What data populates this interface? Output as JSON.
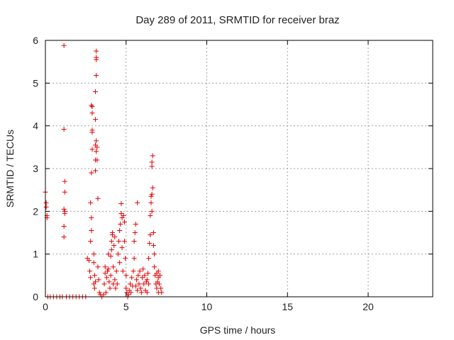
{
  "chart_data": {
    "type": "scatter",
    "title": "Day 289 of 2011, SRMTID for receiver braz",
    "xlabel": "GPS time / hours",
    "ylabel": "SRMTID / TECUs",
    "xlim": [
      0,
      24
    ],
    "ylim": [
      0,
      6
    ],
    "xticks": [
      0,
      5,
      10,
      15,
      20
    ],
    "yticks": [
      0,
      1,
      2,
      3,
      4,
      5,
      6
    ],
    "grid": true,
    "marker": "plus",
    "color": "#e00000",
    "points": [
      [
        0.0,
        2.45
      ],
      [
        0.05,
        2.2
      ],
      [
        0.05,
        2.1
      ],
      [
        0.1,
        1.9
      ],
      [
        0.1,
        1.85
      ],
      [
        0.15,
        0.0
      ],
      [
        0.3,
        0.0
      ],
      [
        0.5,
        0.0
      ],
      [
        0.7,
        0.0
      ],
      [
        0.9,
        0.0
      ],
      [
        1.05,
        0.0
      ],
      [
        1.15,
        5.88
      ],
      [
        1.15,
        3.92
      ],
      [
        1.2,
        2.7
      ],
      [
        1.2,
        2.45
      ],
      [
        1.15,
        2.05
      ],
      [
        1.2,
        2.0
      ],
      [
        1.2,
        1.95
      ],
      [
        1.15,
        1.65
      ],
      [
        1.15,
        1.4
      ],
      [
        1.3,
        0.0
      ],
      [
        1.5,
        0.0
      ],
      [
        1.7,
        0.0
      ],
      [
        1.9,
        0.0
      ],
      [
        2.1,
        0.0
      ],
      [
        2.3,
        0.0
      ],
      [
        2.5,
        0.0
      ],
      [
        2.6,
        0.9
      ],
      [
        2.7,
        0.85
      ],
      [
        2.75,
        0.6
      ],
      [
        2.8,
        0.45
      ],
      [
        2.8,
        1.3
      ],
      [
        2.85,
        1.55
      ],
      [
        2.8,
        2.2
      ],
      [
        2.85,
        1.85
      ],
      [
        2.85,
        2.9
      ],
      [
        2.9,
        3.45
      ],
      [
        2.9,
        3.85
      ],
      [
        2.9,
        3.9
      ],
      [
        2.9,
        4.3
      ],
      [
        2.85,
        4.48
      ],
      [
        2.9,
        4.45
      ],
      [
        3.0,
        1.0
      ],
      [
        3.0,
        0.8
      ],
      [
        3.05,
        0.5
      ],
      [
        3.0,
        0.3
      ],
      [
        3.05,
        0.2
      ],
      [
        3.1,
        0.35
      ],
      [
        3.1,
        2.95
      ],
      [
        3.1,
        3.2
      ],
      [
        3.15,
        3.4
      ],
      [
        3.1,
        3.55
      ],
      [
        3.15,
        3.65
      ],
      [
        3.1,
        4.15
      ],
      [
        3.1,
        4.8
      ],
      [
        3.15,
        5.18
      ],
      [
        3.15,
        5.55
      ],
      [
        3.15,
        5.6
      ],
      [
        3.15,
        5.75
      ],
      [
        3.2,
        3.2
      ],
      [
        3.2,
        3.5
      ],
      [
        3.25,
        2.3
      ],
      [
        3.25,
        0.7
      ],
      [
        3.3,
        0.4
      ],
      [
        3.35,
        0.1
      ],
      [
        3.4,
        0.05
      ],
      [
        3.5,
        0.0
      ],
      [
        3.6,
        0.05
      ],
      [
        3.65,
        0.3
      ],
      [
        3.7,
        0.55
      ],
      [
        3.7,
        0.7
      ],
      [
        3.75,
        0.1
      ],
      [
        3.8,
        0.45
      ],
      [
        3.85,
        0.6
      ],
      [
        3.9,
        0.65
      ],
      [
        3.9,
        1.0
      ],
      [
        3.95,
        0.35
      ],
      [
        4.0,
        0.2
      ],
      [
        4.05,
        0.5
      ],
      [
        4.05,
        0.95
      ],
      [
        4.1,
        1.1
      ],
      [
        4.1,
        1.3
      ],
      [
        4.15,
        1.45
      ],
      [
        4.15,
        1.5
      ],
      [
        4.2,
        0.7
      ],
      [
        4.2,
        0.3
      ],
      [
        4.25,
        1.2
      ],
      [
        4.3,
        1.4
      ],
      [
        4.3,
        0.4
      ],
      [
        4.35,
        0.2
      ],
      [
        4.4,
        0.6
      ],
      [
        4.45,
        0.3
      ],
      [
        4.5,
        1.0
      ],
      [
        4.55,
        1.3
      ],
      [
        4.6,
        1.55
      ],
      [
        4.6,
        0.8
      ],
      [
        4.65,
        1.7
      ],
      [
        4.7,
        1.95
      ],
      [
        4.7,
        2.18
      ],
      [
        4.75,
        1.85
      ],
      [
        4.75,
        1.15
      ],
      [
        4.8,
        0.6
      ],
      [
        4.85,
        1.9
      ],
      [
        4.9,
        1.75
      ],
      [
        4.9,
        1.3
      ],
      [
        4.95,
        0.9
      ],
      [
        5.0,
        0.5
      ],
      [
        5.0,
        0.2
      ],
      [
        5.05,
        0.1
      ],
      [
        5.1,
        0.0
      ],
      [
        5.15,
        0.05
      ],
      [
        5.2,
        0.15
      ],
      [
        5.25,
        0.3
      ],
      [
        5.3,
        0.1
      ],
      [
        5.35,
        0.45
      ],
      [
        5.4,
        0.25
      ],
      [
        5.45,
        0.6
      ],
      [
        5.5,
        0.9
      ],
      [
        5.5,
        1.3
      ],
      [
        5.55,
        1.5
      ],
      [
        5.6,
        1.7
      ],
      [
        5.65,
        0.4
      ],
      [
        5.7,
        2.2
      ],
      [
        5.7,
        0.15
      ],
      [
        5.75,
        0.5
      ],
      [
        5.8,
        0.3
      ],
      [
        5.85,
        0.6
      ],
      [
        5.9,
        0.2
      ],
      [
        5.95,
        0.1
      ],
      [
        6.0,
        0.45
      ],
      [
        6.05,
        0.65
      ],
      [
        6.1,
        0.3
      ],
      [
        6.15,
        0.5
      ],
      [
        6.2,
        0.15
      ],
      [
        6.25,
        0.35
      ],
      [
        6.3,
        0.1
      ],
      [
        6.35,
        0.55
      ],
      [
        6.4,
        0.9
      ],
      [
        6.45,
        1.25
      ],
      [
        6.5,
        1.9
      ],
      [
        6.5,
        1.45
      ],
      [
        6.55,
        2.2
      ],
      [
        6.55,
        2.35
      ],
      [
        6.6,
        2.4
      ],
      [
        6.6,
        3.05
      ],
      [
        6.6,
        3.15
      ],
      [
        6.65,
        3.3
      ],
      [
        6.65,
        2.55
      ],
      [
        6.6,
        2.0
      ],
      [
        6.7,
        1.5
      ],
      [
        6.7,
        1.2
      ],
      [
        6.75,
        1.0
      ],
      [
        6.75,
        0.7
      ],
      [
        6.8,
        0.5
      ],
      [
        6.85,
        0.3
      ],
      [
        6.9,
        0.2
      ],
      [
        6.95,
        0.35
      ],
      [
        7.0,
        0.45
      ],
      [
        7.0,
        0.1
      ],
      [
        7.05,
        0.3
      ],
      [
        7.1,
        0.5
      ],
      [
        7.15,
        0.2
      ],
      [
        7.2,
        0.1
      ],
      [
        7.0,
        0.6
      ],
      [
        6.9,
        0.55
      ],
      [
        6.4,
        0.3
      ],
      [
        6.3,
        0.4
      ],
      [
        5.6,
        0.25
      ]
    ]
  }
}
